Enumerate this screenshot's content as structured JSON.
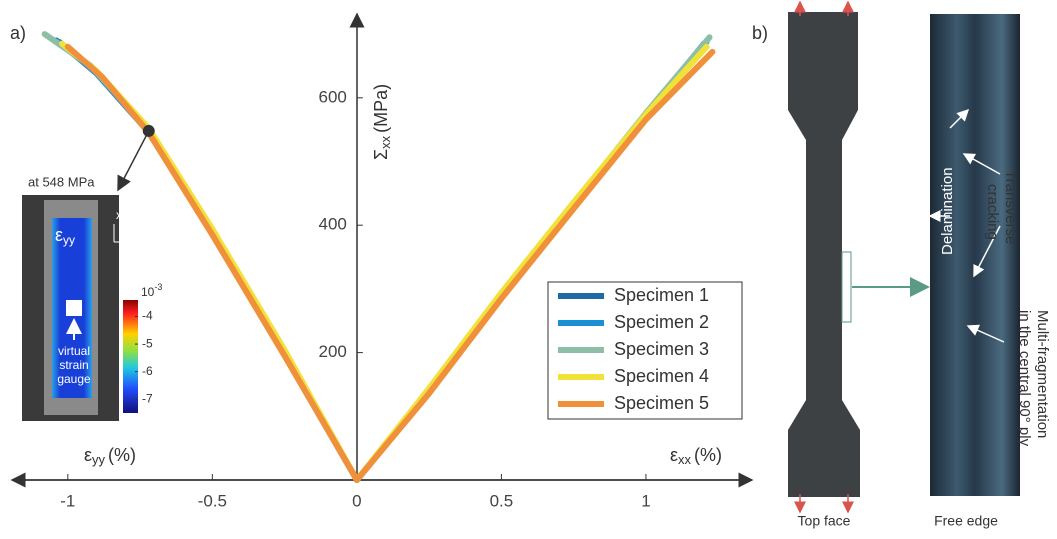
{
  "chart_data": {
    "type": "line",
    "panel_label": "a)",
    "x_label": {
      "symbol": "ε",
      "sub": "xx",
      "unit": "(%)"
    },
    "x_label_left": {
      "symbol": "ε",
      "sub": "yy",
      "unit": "(%)"
    },
    "y_label": {
      "symbol": "Σ",
      "sub": "xx",
      "unit": "(MPa)"
    },
    "xlim": [
      -1.2,
      1.36
    ],
    "ylim": [
      0,
      730
    ],
    "xticks": [
      -1,
      -0.5,
      0,
      0.5,
      1
    ],
    "yticks": [
      200,
      400,
      600
    ],
    "legend": "right",
    "series": [
      {
        "name": "Specimen 1",
        "color": "#1f6aa5",
        "x": [
          -1.04,
          -0.9,
          -0.72,
          -0.5,
          -0.25,
          0,
          null,
          0,
          0.25,
          0.5,
          0.75,
          1.0,
          1.2
        ],
        "values": [
          690,
          640,
          548,
          388,
          198,
          0,
          null,
          0,
          138,
          288,
          430,
          572,
          685
        ]
      },
      {
        "name": "Specimen 2",
        "color": "#1b8fd4",
        "x": [
          -1.03,
          -0.9,
          -0.72,
          -0.5,
          -0.25,
          0,
          null,
          0,
          0.25,
          0.5,
          0.75,
          1.0,
          1.21
        ],
        "values": [
          688,
          638,
          546,
          386,
          196,
          0,
          null,
          0,
          140,
          290,
          432,
          570,
          688
        ]
      },
      {
        "name": "Specimen 3",
        "color": "#8cbfa6",
        "x": [
          -1.08,
          -0.92,
          -0.72,
          -0.5,
          -0.25,
          0,
          null,
          0,
          0.25,
          0.5,
          0.75,
          1.0,
          1.22
        ],
        "values": [
          700,
          650,
          550,
          392,
          202,
          0,
          null,
          0,
          142,
          292,
          434,
          576,
          695
        ]
      },
      {
        "name": "Specimen 4",
        "color": "#f1e23a",
        "x": [
          -1.02,
          -0.9,
          -0.72,
          -0.5,
          -0.25,
          0,
          null,
          0,
          0.25,
          0.5,
          0.75,
          1.0,
          1.21
        ],
        "values": [
          685,
          642,
          552,
          394,
          204,
          0,
          null,
          0,
          144,
          294,
          436,
          574,
          680
        ]
      },
      {
        "name": "Specimen 5",
        "color": "#f0903a",
        "x": [
          -1.0,
          -0.88,
          -0.72,
          -0.5,
          -0.25,
          0,
          null,
          0,
          0.25,
          0.5,
          0.75,
          1.0,
          1.23
        ],
        "values": [
          680,
          632,
          545,
          385,
          195,
          0,
          null,
          0,
          136,
          285,
          426,
          566,
          672
        ]
      }
    ],
    "annotation": {
      "x": -0.72,
      "y": 548,
      "label": "at 548 MPa"
    },
    "inset": {
      "field": {
        "symbol": "ε",
        "sub": "yy"
      },
      "axis_x": "x",
      "axis_y": "y",
      "gauge_label": [
        "virtual",
        "strain",
        "gauge"
      ],
      "colorbar_base": "10",
      "colorbar_exp": "-3",
      "colorbar_ticks": [
        -4,
        -5,
        -6,
        -7
      ],
      "colorbar_lim": [
        -7.5,
        -3.4
      ]
    }
  },
  "panel_b": {
    "panel_label": "b)",
    "top_face": "Top face",
    "free_edge": "Free edge",
    "delamination": "Delamination",
    "transverse": [
      "Transverse",
      "cracking"
    ],
    "fragmentation": [
      "Multi-fragmentation",
      "in the central 90° ply"
    ]
  }
}
